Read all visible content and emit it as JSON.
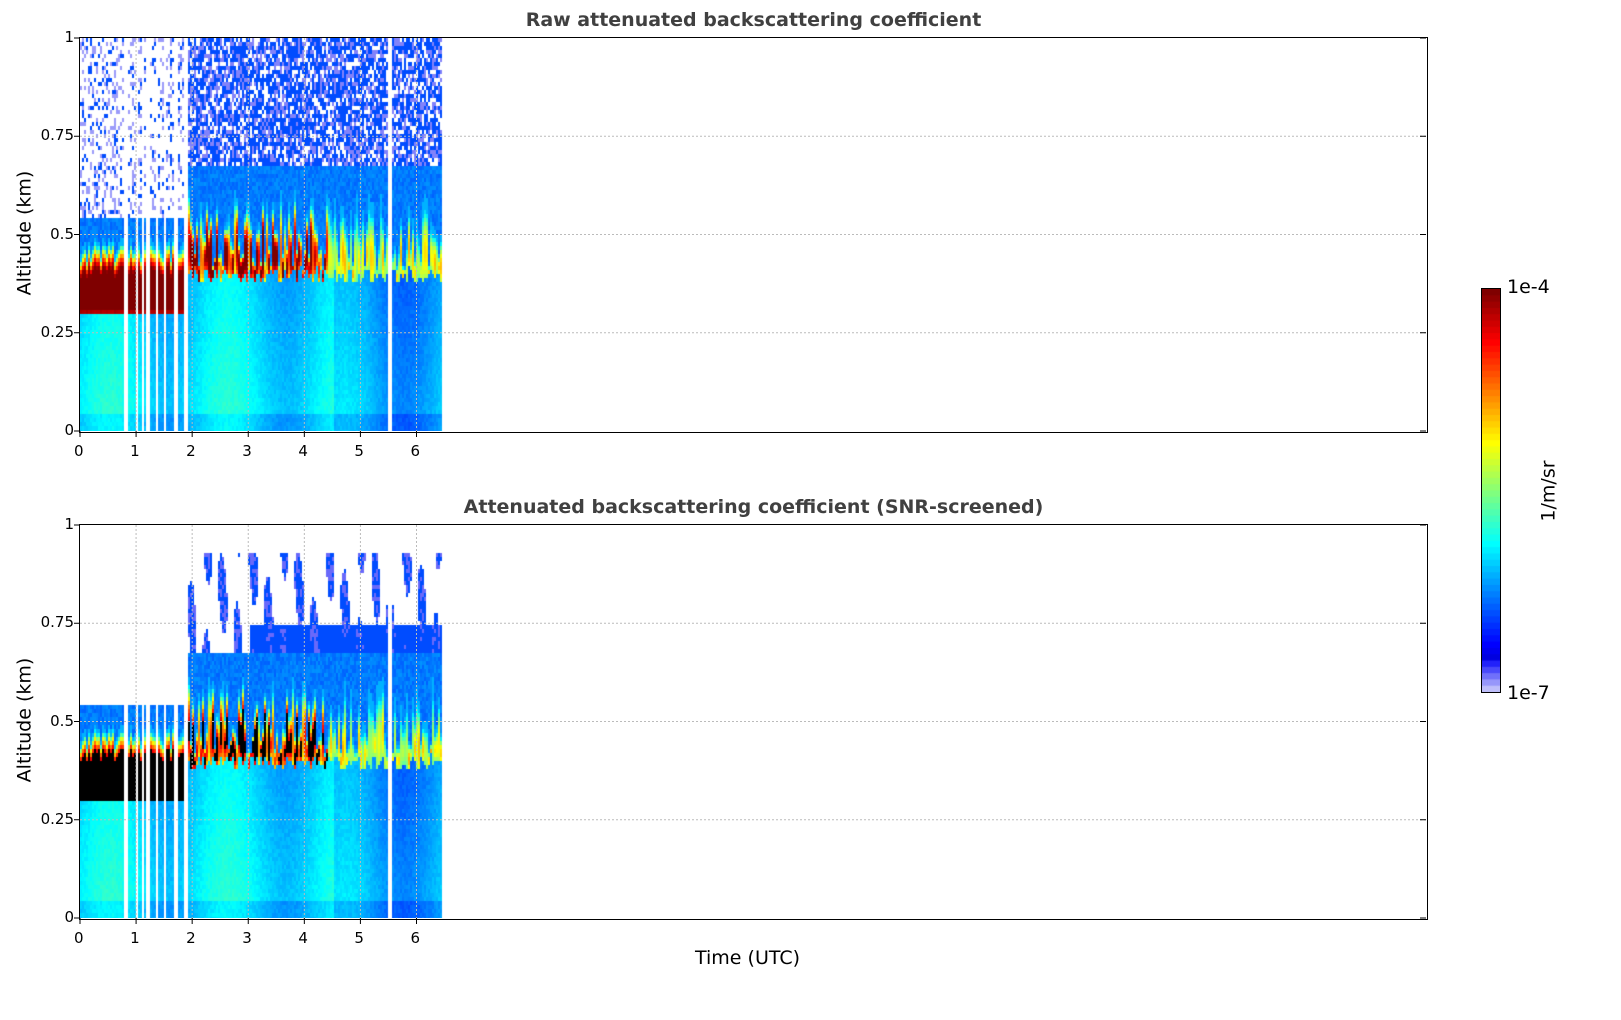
{
  "chart_data": [
    {
      "type": "heatmap",
      "title": "Raw attenuated backscattering coefficient",
      "xlabel": "",
      "ylabel": "Altitude (km)",
      "xlim": [
        0,
        24
      ],
      "ylim": [
        0,
        1
      ],
      "xticks": [
        "0",
        "1",
        "2",
        "3",
        "4",
        "5",
        "6"
      ],
      "yticks": [
        "0",
        "0.25",
        "0.5",
        "0.75",
        "1"
      ],
      "data_end_time": 6.45,
      "grid": true,
      "screened": false
    },
    {
      "type": "heatmap",
      "title": "Attenuated backscattering coefficient (SNR-screened)",
      "xlabel": "Time (UTC)",
      "ylabel": "Altitude (km)",
      "xlim": [
        0,
        24
      ],
      "ylim": [
        0,
        1
      ],
      "xticks": [
        "0",
        "1",
        "2",
        "3",
        "4",
        "5",
        "6"
      ],
      "yticks": [
        "0",
        "0.25",
        "0.5",
        "0.75",
        "1"
      ],
      "data_end_time": 6.45,
      "grid": true,
      "screened": true
    }
  ],
  "colorbar": {
    "label": "1/m/sr",
    "max_label": "1e-4",
    "min_label": "1e-7",
    "scale": "log",
    "range": [
      1e-07,
      0.0001
    ],
    "colormap": "jet"
  }
}
